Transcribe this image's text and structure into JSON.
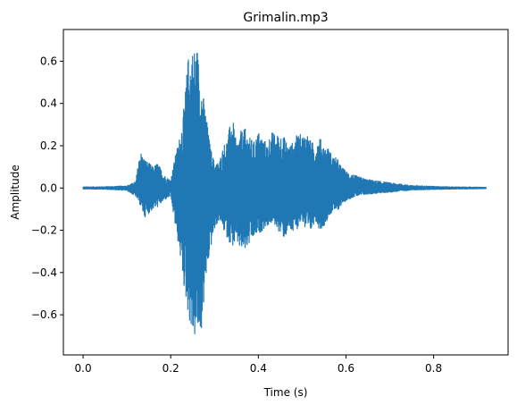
{
  "chart_data": {
    "type": "line",
    "title": "Grimalin.mp3",
    "xlabel": "Time (s)",
    "ylabel": "Amplitude",
    "xlim": [
      -0.045,
      0.97
    ],
    "ylim": [
      -0.79,
      0.75
    ],
    "x_ticks": [
      0.0,
      0.2,
      0.4,
      0.6,
      0.8
    ],
    "x_tick_labels": [
      "0.0",
      "0.2",
      "0.4",
      "0.6",
      "0.8"
    ],
    "y_ticks": [
      -0.6,
      -0.4,
      -0.2,
      0.0,
      0.2,
      0.4,
      0.6
    ],
    "y_tick_labels": [
      "−0.6",
      "−0.4",
      "−0.2",
      "0.0",
      "0.2",
      "0.4",
      "0.6"
    ],
    "grid": false,
    "series": [
      {
        "color": "#1f77b4",
        "duration": 0.92,
        "envelope_time": [
          0.0,
          0.05,
          0.1,
          0.12,
          0.13,
          0.14,
          0.15,
          0.16,
          0.17,
          0.18,
          0.19,
          0.2,
          0.21,
          0.22,
          0.23,
          0.24,
          0.25,
          0.26,
          0.27,
          0.28,
          0.29,
          0.3,
          0.31,
          0.32,
          0.33,
          0.34,
          0.35,
          0.36,
          0.37,
          0.38,
          0.39,
          0.4,
          0.41,
          0.42,
          0.43,
          0.44,
          0.45,
          0.46,
          0.47,
          0.48,
          0.49,
          0.5,
          0.51,
          0.52,
          0.53,
          0.54,
          0.55,
          0.56,
          0.57,
          0.58,
          0.59,
          0.6,
          0.62,
          0.65,
          0.7,
          0.75,
          0.8,
          0.85,
          0.9,
          0.92
        ],
        "envelope_upper": [
          0.005,
          0.006,
          0.01,
          0.03,
          0.18,
          0.14,
          0.12,
          0.1,
          0.12,
          0.08,
          0.05,
          0.04,
          0.15,
          0.24,
          0.38,
          0.63,
          0.66,
          0.68,
          0.5,
          0.36,
          0.2,
          0.12,
          0.12,
          0.2,
          0.24,
          0.35,
          0.21,
          0.27,
          0.28,
          0.24,
          0.22,
          0.27,
          0.24,
          0.21,
          0.27,
          0.25,
          0.26,
          0.24,
          0.2,
          0.22,
          0.26,
          0.25,
          0.27,
          0.22,
          0.21,
          0.24,
          0.2,
          0.19,
          0.15,
          0.14,
          0.1,
          0.08,
          0.06,
          0.04,
          0.025,
          0.012,
          0.008,
          0.005,
          0.004,
          0.003
        ],
        "envelope_lower": [
          -0.005,
          -0.006,
          -0.012,
          -0.04,
          -0.08,
          -0.14,
          -0.12,
          -0.1,
          -0.09,
          -0.07,
          -0.05,
          -0.04,
          -0.18,
          -0.3,
          -0.47,
          -0.6,
          -0.72,
          -0.71,
          -0.68,
          -0.45,
          -0.3,
          -0.2,
          -0.15,
          -0.2,
          -0.24,
          -0.28,
          -0.26,
          -0.3,
          -0.3,
          -0.27,
          -0.24,
          -0.22,
          -0.2,
          -0.18,
          -0.17,
          -0.18,
          -0.22,
          -0.24,
          -0.2,
          -0.22,
          -0.19,
          -0.15,
          -0.23,
          -0.21,
          -0.15,
          -0.2,
          -0.18,
          -0.14,
          -0.11,
          -0.11,
          -0.08,
          -0.06,
          -0.04,
          -0.03,
          -0.02,
          -0.01,
          -0.007,
          -0.005,
          -0.004,
          -0.003
        ]
      }
    ]
  }
}
